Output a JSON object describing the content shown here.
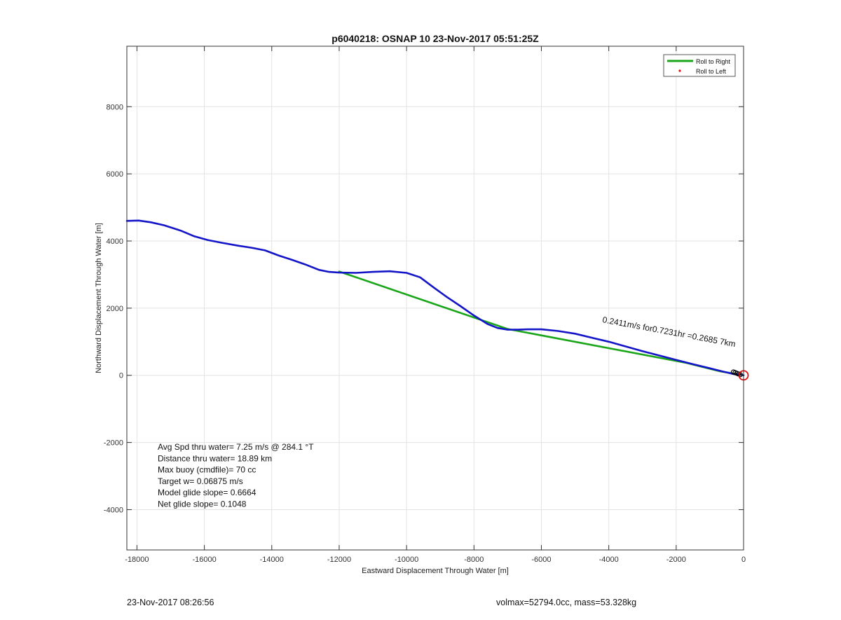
{
  "chart_data": {
    "type": "line",
    "title": "p6040218: OSNAP 10 23-Nov-2017 05:51:25Z",
    "xlabel": "Eastward Displacement Through Water [m]",
    "ylabel": "Northward Displacement Through Water [m]",
    "xlim": [
      -18300,
      0
    ],
    "ylim": [
      -5200,
      9800
    ],
    "xticks": [
      -18000,
      -16000,
      -14000,
      -12000,
      -10000,
      -8000,
      -6000,
      -4000,
      -2000,
      0
    ],
    "yticks": [
      -4000,
      -2000,
      0,
      2000,
      4000,
      6000,
      8000
    ],
    "grid": true,
    "legend": {
      "placement": "top-right",
      "entries": [
        "Roll to Right",
        "Roll to Left"
      ]
    },
    "series": [
      {
        "name": "Roll to Right",
        "color": "#1aa51a",
        "x": [
          -12000,
          -7000,
          -1700,
          -700,
          0
        ],
        "y": [
          3090,
          1380,
          370,
          120,
          0
        ]
      },
      {
        "name": "",
        "color": "#1414c8",
        "x": [
          -18300,
          -17950,
          -17600,
          -17200,
          -16700,
          -16300,
          -15900,
          -15500,
          -15000,
          -14600,
          -14200,
          -13800,
          -13400,
          -13000,
          -12600,
          -12300,
          -12000,
          -11500,
          -11000,
          -10500,
          -10000,
          -9600,
          -9200,
          -8800,
          -8400,
          -8000,
          -7600,
          -7300,
          -7000,
          -6700,
          -6400,
          -6000,
          -5500,
          -5000,
          -4500,
          -4000,
          -3500,
          -3000,
          -2500,
          -2000,
          -1500,
          -1000,
          -600,
          -300,
          0
        ],
        "y": [
          4600,
          4610,
          4560,
          4470,
          4310,
          4140,
          4030,
          3950,
          3860,
          3800,
          3720,
          3570,
          3440,
          3300,
          3140,
          3080,
          3060,
          3050,
          3080,
          3100,
          3050,
          2920,
          2620,
          2330,
          2060,
          1780,
          1530,
          1410,
          1360,
          1360,
          1370,
          1370,
          1320,
          1240,
          1120,
          1000,
          860,
          720,
          590,
          460,
          330,
          210,
          110,
          40,
          0
        ]
      },
      {
        "name": "Roll to Left",
        "color": "#e01010",
        "x": [],
        "y": []
      }
    ],
    "markers": {
      "start_circle": {
        "x": 0,
        "y": 0,
        "color": "#e01010"
      },
      "cluster": {
        "x": [
          -300,
          -250,
          -200,
          -150,
          -100
        ],
        "y": [
          100,
          80,
          60,
          40,
          20
        ],
        "color": "#000000"
      }
    },
    "annotation": {
      "text": "0.2411m/s for0.7231hr =0.2685 7km",
      "x": -4200,
      "y": 1580,
      "angle_deg": 10.5
    },
    "stats": [
      "Avg Spd thru water=  7.25 m/s @ 284.1 °T",
      "Distance thru water= 18.89 km",
      "Max buoy (cmdfile)= 70 cc",
      "Target w= 0.06875 m/s",
      "Model glide slope= 0.6664",
      "Net glide slope= 0.1048"
    ]
  },
  "footer": {
    "left": "23-Nov-2017 08:26:56",
    "right": "volmax=52794.0cc, mass=53.328kg"
  }
}
